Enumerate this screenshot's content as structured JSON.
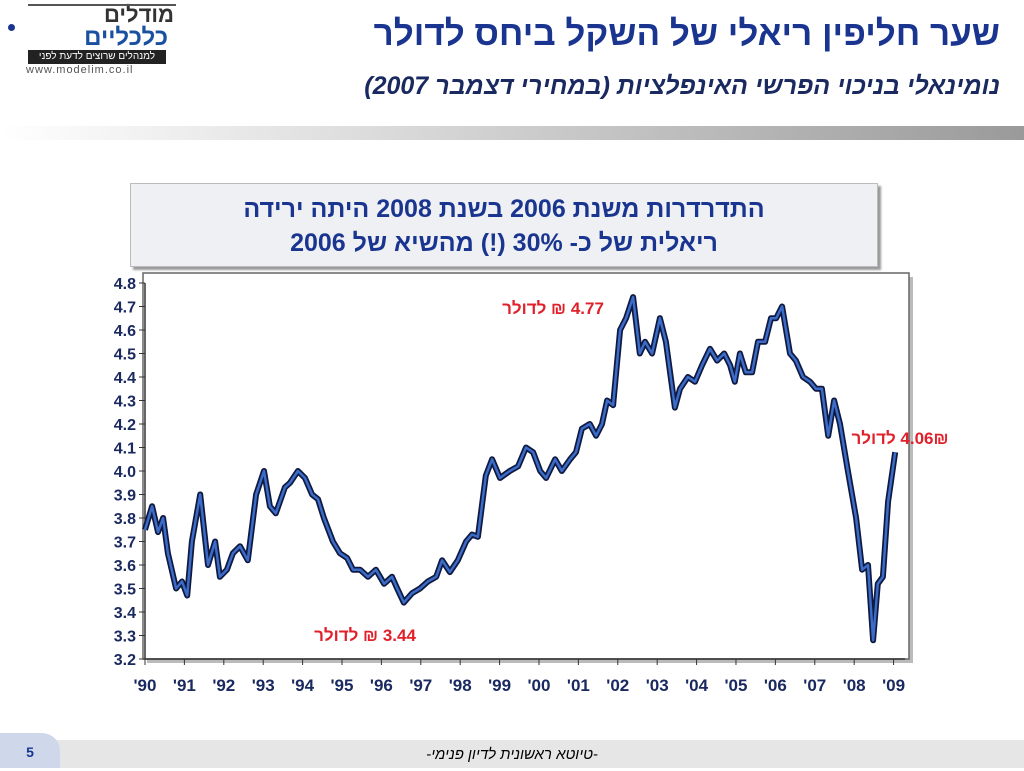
{
  "logo": {
    "name1": "מודלים",
    "name2": "כלכליים",
    "tagline": "למנהלים שרוצים לדעת לפני",
    "url": "www.modelim.co.il"
  },
  "callout": [
    "התדרדרות משנת 2006 בשנת 2008 היתה ירידה",
    "ריאלית של כ- 30% (!) מהשיא של 2006"
  ],
  "footer": {
    "page": "5",
    "note": "-טיוטא ראשונית לדיון פנימי-"
  },
  "chart_data": {
    "type": "line",
    "title": "שער חליפין ריאלי של השקל ביחס לדולר",
    "subtitle": "נומינאלי בניכוי הפרשי האינפלציות (במחירי דצמבר 2007)",
    "x": [
      1990.0,
      1990.18,
      1990.33,
      1990.46,
      1990.58,
      1990.79,
      1990.94,
      1991.07,
      1991.19,
      1991.4,
      1991.6,
      1991.78,
      1991.9,
      1992.08,
      1992.23,
      1992.41,
      1992.61,
      1992.82,
      1993.02,
      1993.17,
      1993.32,
      1993.55,
      1993.68,
      1993.88,
      1994.06,
      1994.24,
      1994.39,
      1994.54,
      1994.77,
      1994.95,
      1995.13,
      1995.28,
      1995.46,
      1995.66,
      1995.86,
      1996.07,
      1996.27,
      1996.4,
      1996.57,
      1996.78,
      1996.98,
      1997.18,
      1997.39,
      1997.54,
      1997.74,
      1997.94,
      1998.15,
      1998.3,
      1998.45,
      1998.65,
      1998.81,
      1999.01,
      1999.26,
      1999.47,
      1999.67,
      1999.85,
      2000.03,
      2000.18,
      2000.41,
      2000.58,
      2000.79,
      2000.94,
      2001.09,
      2001.29,
      2001.45,
      2001.6,
      2001.73,
      2001.88,
      2002.06,
      2002.21,
      2002.39,
      2002.56,
      2002.69,
      2002.87,
      2003.07,
      2003.22,
      2003.45,
      2003.58,
      2003.78,
      2003.96,
      2004.14,
      2004.34,
      2004.52,
      2004.7,
      2004.85,
      2004.97,
      2005.1,
      2005.25,
      2005.41,
      2005.56,
      2005.74,
      2005.89,
      2006.02,
      2006.17,
      2006.37,
      2006.52,
      2006.7,
      2006.88,
      2007.03,
      2007.18,
      2007.34,
      2007.49,
      2007.64,
      2007.84,
      2008.05,
      2008.2,
      2008.35,
      2008.48,
      2008.6,
      2008.73,
      2008.86,
      2009.04
    ],
    "series": [
      {
        "color": "#3a6cc8",
        "values": [
          3.75,
          3.85,
          3.74,
          3.8,
          3.65,
          3.5,
          3.53,
          3.47,
          3.7,
          3.9,
          3.6,
          3.7,
          3.55,
          3.58,
          3.65,
          3.68,
          3.62,
          3.9,
          4.0,
          3.85,
          3.82,
          3.93,
          3.95,
          4.0,
          3.97,
          3.9,
          3.88,
          3.8,
          3.7,
          3.65,
          3.63,
          3.58,
          3.58,
          3.55,
          3.58,
          3.52,
          3.55,
          3.5,
          3.44,
          3.48,
          3.5,
          3.53,
          3.55,
          3.62,
          3.57,
          3.62,
          3.7,
          3.73,
          3.72,
          3.98,
          4.05,
          3.97,
          4.0,
          4.02,
          4.1,
          4.08,
          4.0,
          3.97,
          4.05,
          4.0,
          4.05,
          4.08,
          4.18,
          4.2,
          4.15,
          4.2,
          4.3,
          4.28,
          4.6,
          4.65,
          4.74,
          4.5,
          4.55,
          4.5,
          4.65,
          4.55,
          4.27,
          4.35,
          4.4,
          4.38,
          4.45,
          4.52,
          4.47,
          4.5,
          4.45,
          4.38,
          4.5,
          4.42,
          4.42,
          4.55,
          4.55,
          4.65,
          4.65,
          4.7,
          4.5,
          4.47,
          4.4,
          4.38,
          4.35,
          4.35,
          4.15,
          4.3,
          4.2,
          4.0,
          3.8,
          3.58,
          3.6,
          3.28,
          3.52,
          3.55,
          3.87,
          4.08
        ]
      }
    ],
    "xlim": [
      1990,
      2009.29
    ],
    "xticks": [
      {
        "value": 1990,
        "label": "'90"
      },
      {
        "value": 1991,
        "label": "'91"
      },
      {
        "value": 1992,
        "label": "'92"
      },
      {
        "value": 1993,
        "label": "'93"
      },
      {
        "value": 1994,
        "label": "'94"
      },
      {
        "value": 1995,
        "label": "'95"
      },
      {
        "value": 1996,
        "label": "'96"
      },
      {
        "value": 1997,
        "label": "'97"
      },
      {
        "value": 1998,
        "label": "'98"
      },
      {
        "value": 1999,
        "label": "'99"
      },
      {
        "value": 2000,
        "label": "'00"
      },
      {
        "value": 2001,
        "label": "'01"
      },
      {
        "value": 2002,
        "label": "'02"
      },
      {
        "value": 2003,
        "label": "'03"
      },
      {
        "value": 2004,
        "label": "'04"
      },
      {
        "value": 2005,
        "label": "'05"
      },
      {
        "value": 2006,
        "label": "'06"
      },
      {
        "value": 2007,
        "label": "'07"
      },
      {
        "value": 2008,
        "label": "'08"
      },
      {
        "value": 2009,
        "label": "'09"
      }
    ],
    "ylim": [
      3.2,
      4.8
    ],
    "yticks": [
      3.2,
      3.3,
      3.4,
      3.5,
      3.6,
      3.7,
      3.8,
      3.9,
      {
        "value": 4,
        "label": "4.0"
      },
      4.1,
      4.2,
      4.3,
      4.4,
      4.5,
      4.6,
      4.7,
      4.8
    ],
    "annotations": [
      "4.77 ₪ לדולר",
      "3.44 ₪ לדולר",
      "4.06₪ לדולר"
    ],
    "annotation_color": "#e0202a"
  }
}
